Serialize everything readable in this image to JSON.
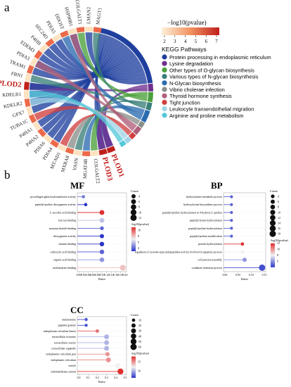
{
  "panel_labels": {
    "a": "a",
    "b": "b"
  },
  "chord": {
    "genes": [
      "PLOD1",
      "PLOD3",
      "COLGALT2",
      "MGAT4B",
      "VASN",
      "MXRA8",
      "MT-ND1",
      "PDIA4",
      "PDIA6",
      "P4HA2",
      "P4HA1",
      "TUBA1C",
      "GPX7",
      "KDELR2",
      "KDELR1",
      "PLOD2",
      "FBN1",
      "TRAM1",
      "PDIA3",
      "EDEM3",
      "P4HB",
      "SEC24D",
      "PDIA5",
      "DDOST",
      "HSP90B1",
      "COLGALT1",
      "LMAN2",
      "MAGT1"
    ],
    "highlight_genes": [
      "PLOD1",
      "PLOD3",
      "PLOD2"
    ],
    "legend_title": "−log10(pvalue)",
    "legend_ticks": [
      "2",
      "3",
      "4",
      "5",
      "6",
      "7"
    ],
    "pathway_title": "KEGG Pathways",
    "pathways": [
      {
        "name": "Protein processing in endoplasmic reticulum",
        "color": "#1f3f9e"
      },
      {
        "name": "Lysine degradation",
        "color": "#6e2e8e"
      },
      {
        "name": "Other types of O-glycan biosynthesis",
        "color": "#4ca03c"
      },
      {
        "name": "Various types of N-glycan biosynthesis",
        "color": "#3a7f7a"
      },
      {
        "name": "N-Glycan biosynthesis",
        "color": "#2b6cb0"
      },
      {
        "name": "Vibrio cholerae infection",
        "color": "#8a8f8a"
      },
      {
        "name": "Thyroid hormone synthesis",
        "color": "#b0607a"
      },
      {
        "name": "Tight junction",
        "color": "#d04040"
      },
      {
        "name": "Leukocyte transendothelial migration",
        "color": "#9fd3e6"
      },
      {
        "name": "Arginine and proline metabolism",
        "color": "#55c8d8"
      }
    ]
  },
  "chart_data": [
    {
      "type": "scatter",
      "title": "MF",
      "xlabel": "Ratio",
      "xlim": [
        0,
        0.2
      ],
      "xticks": [
        "0.00",
        "0.02",
        "0.04",
        "0.06",
        "0.08",
        "0.10",
        "0.12",
        "0.14",
        "0.16",
        "0.18",
        "0.20"
      ],
      "categories": [
        "procollagen galactosyltransferase activity",
        "peptidyl-proline dioxygenase activity",
        "L-ascorbic acid binding",
        "iron ion binding",
        "monosaccharide binding",
        "dioxygenase activity",
        "vitamin binding",
        "carboxylic acid binding",
        "organic acid binding",
        "carbohydrate binding"
      ],
      "x": [
        0.02,
        0.03,
        0.1,
        0.1,
        0.1,
        0.1,
        0.1,
        0.1,
        0.1,
        0.19
      ],
      "count": [
        2,
        2,
        6,
        6,
        3,
        4,
        5,
        5,
        5,
        10
      ],
      "log10p": [
        4.5,
        3.0,
        11.0,
        6.0,
        4.0,
        3.0,
        3.0,
        4.0,
        5.0,
        8.0
      ],
      "size_legend_title": "Count",
      "size_legend": [
        4,
        6,
        8,
        10,
        12
      ],
      "color_legend_title": "-log10(pvalue)",
      "color_ticks": [
        "4",
        "6",
        "8",
        "10"
      ],
      "color_range": [
        3,
        11
      ]
    },
    {
      "type": "scatter",
      "title": "BP",
      "xlabel": "Ratio",
      "xlim": [
        0,
        0.18
      ],
      "xticks": [
        "0.00",
        "0.05",
        "0.10",
        "0.15"
      ],
      "categories": [
        "hydroxylysine metabolic process",
        "hydroxylysine biosynthetic process",
        "peptidyl-proline hydroxylation to 4-hydroxy-L-proline",
        "peptidyl-lysine hydroxylation",
        "peptidyl-proline hydroxylation",
        "peptidyl-proline modification",
        "protein hydroxylation",
        "regulation of cysteine-type endopeptidase activity involved in apoptotic process",
        "cell junction assembly",
        "oxidation-reduction process"
      ],
      "x": [
        0.03,
        0.03,
        0.03,
        0.03,
        0.03,
        0.03,
        0.08,
        0.08,
        0.09,
        0.17
      ],
      "count": [
        2,
        2,
        2,
        2,
        2,
        2,
        3,
        5,
        6,
        18
      ],
      "log10p": [
        5.0,
        5.0,
        5.0,
        5.0,
        5.0,
        5.0,
        12.0,
        8.0,
        6.0,
        4.5
      ],
      "size_legend_title": "Count",
      "size_legend": [
        4,
        6,
        8,
        10,
        12,
        14,
        16,
        18
      ],
      "color_legend_title": "-log10(pvalue)",
      "color_ticks": [
        "6",
        "8",
        "10",
        "12"
      ],
      "color_range": [
        4,
        12
      ]
    },
    {
      "type": "scatter",
      "title": "CC",
      "xlabel": "Ratio",
      "xlim": [
        0,
        0.5
      ],
      "xticks": [
        "0.0",
        "0.1",
        "0.2",
        "0.3",
        "0.4",
        "0.5"
      ],
      "categories": [
        "melanosome",
        "pigment granule",
        "endoplasmic reticulum lumen",
        "extracellular exosome",
        "extracellular vesicle",
        "extracellular organelle",
        "endoplasmic reticulum part",
        "endoplasmic reticulum",
        "vesicle",
        "endomembrane system"
      ],
      "x": [
        0.08,
        0.08,
        0.2,
        0.3,
        0.3,
        0.3,
        0.31,
        0.32,
        0.42,
        0.45
      ],
      "count": [
        8,
        8,
        12,
        30,
        30,
        30,
        20,
        30,
        40,
        50
      ],
      "log10p": [
        7.0,
        7.0,
        16.0,
        10.0,
        10.0,
        10.0,
        15.0,
        15.0,
        12.0,
        18.0
      ],
      "size_legend_title": "Count",
      "size_legend": [
        10,
        20,
        30,
        40,
        50,
        60
      ],
      "color_legend_title": "-log10(pvalue)",
      "color_ticks": [
        "10",
        "15"
      ],
      "color_range": [
        6,
        18
      ]
    }
  ]
}
